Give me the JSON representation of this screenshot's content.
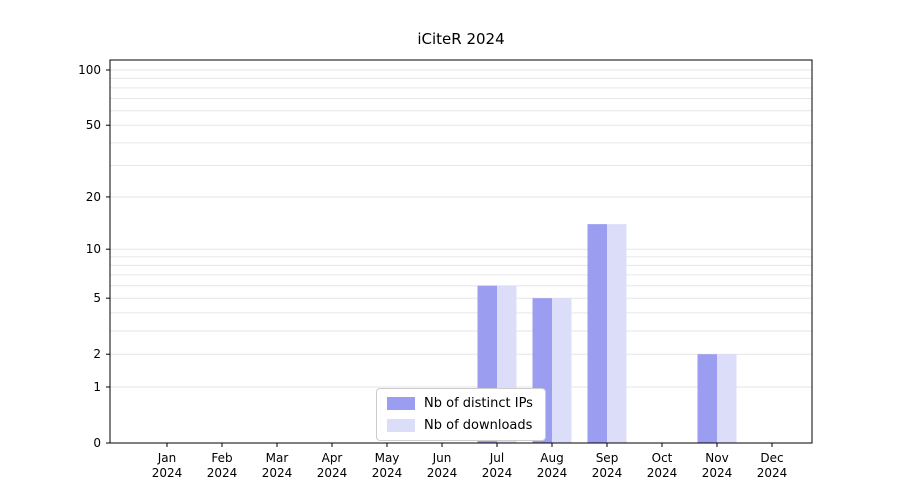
{
  "chart_data": {
    "type": "bar",
    "title": "iCiteR 2024",
    "categories": [
      "Jan",
      "Feb",
      "Mar",
      "Apr",
      "May",
      "Jun",
      "Jul",
      "Aug",
      "Sep",
      "Oct",
      "Nov",
      "Dec"
    ],
    "category_year": "2024",
    "series": [
      {
        "name": "Nb of distinct IPs",
        "color": "#9b9df0",
        "values": [
          0,
          0,
          0,
          0,
          0,
          0,
          6,
          5,
          14,
          0,
          2,
          0
        ]
      },
      {
        "name": "Nb of downloads",
        "color": "#dcddf8",
        "values": [
          0,
          0,
          0,
          0,
          0,
          0,
          6,
          5,
          14,
          0,
          2,
          0
        ]
      }
    ],
    "y_axis": {
      "scale": "log1p",
      "ticks": [
        0,
        1,
        2,
        5,
        10,
        20,
        50,
        100
      ],
      "minor_gridlines": [
        3,
        4,
        6,
        7,
        8,
        9,
        30,
        40,
        60,
        70,
        80,
        90
      ],
      "range_top_value": 113
    },
    "grid": true,
    "legend": {
      "position": "bottom-center"
    }
  }
}
